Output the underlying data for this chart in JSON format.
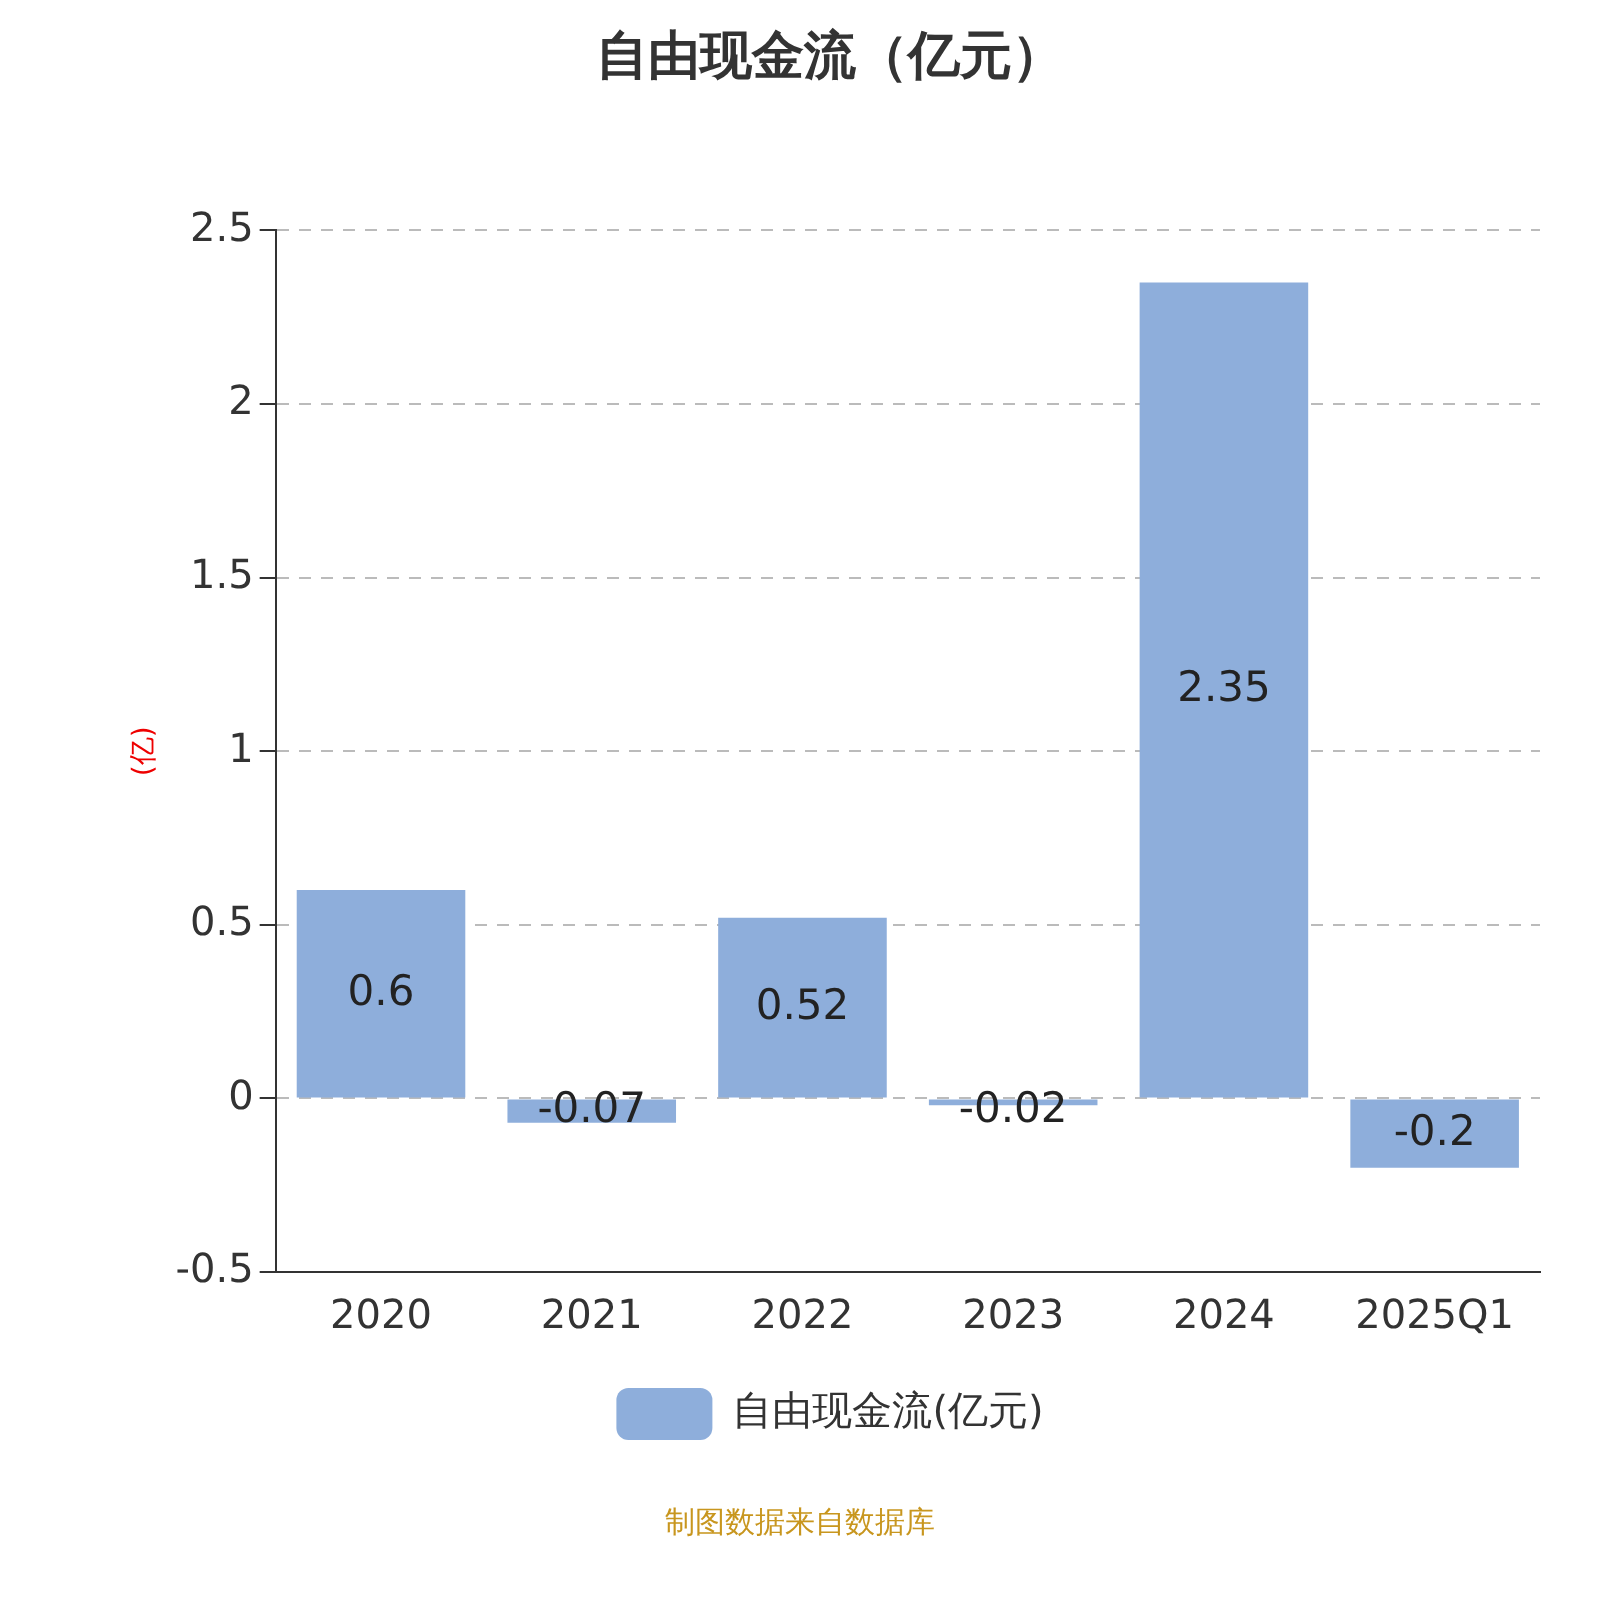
{
  "chart_data": {
    "type": "bar",
    "title": "自由现金流（亿元）",
    "ylabel": "(亿)",
    "categories": [
      "2020",
      "2021",
      "2022",
      "2023",
      "2024",
      "2025Q1"
    ],
    "series": [
      {
        "name": "自由现金流(亿元)",
        "color": "#8eaedb",
        "values": [
          0.6,
          -0.07,
          0.52,
          -0.02,
          2.35,
          -0.2
        ]
      }
    ],
    "ylim": [
      -0.5,
      2.5
    ],
    "yticks": [
      -0.5,
      0,
      0.5,
      1,
      1.5,
      2,
      2.5
    ],
    "grid": "y",
    "legend": "bottom",
    "data_labels": true,
    "annotations": [
      "制图数据来自数据库"
    ]
  }
}
